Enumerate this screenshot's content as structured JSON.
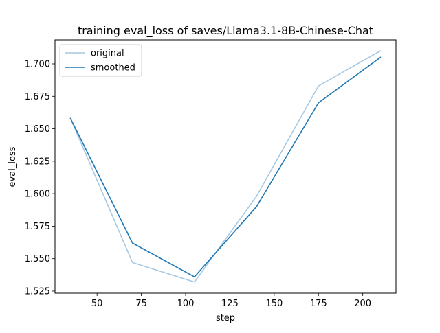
{
  "chart_data": {
    "type": "line",
    "title": "training eval_loss of saves/Llama3.1-8B-Chinese-Chat",
    "xlabel": "step",
    "ylabel": "eval_loss",
    "xlim": [
      26.25,
      218.75
    ],
    "ylim": [
      1.5234,
      1.7185
    ],
    "x": [
      35,
      70,
      105,
      140,
      175,
      210
    ],
    "xticks": [
      50,
      75,
      100,
      125,
      150,
      175,
      200
    ],
    "yticks": [
      1.525,
      1.55,
      1.575,
      1.6,
      1.625,
      1.65,
      1.675,
      1.7
    ],
    "ytick_labels": [
      "1.525",
      "1.550",
      "1.575",
      "1.600",
      "1.625",
      "1.650",
      "1.675",
      "1.700"
    ],
    "series": [
      {
        "name": "original",
        "color": "#a6c8e2",
        "values": [
          1.658,
          1.547,
          1.532,
          1.598,
          1.683,
          1.71
        ]
      },
      {
        "name": "smoothed",
        "color": "#1f77b4",
        "values": [
          1.658,
          1.562,
          1.536,
          1.59,
          1.67,
          1.705
        ]
      }
    ],
    "legend_position": "upper-left",
    "grid": false
  }
}
